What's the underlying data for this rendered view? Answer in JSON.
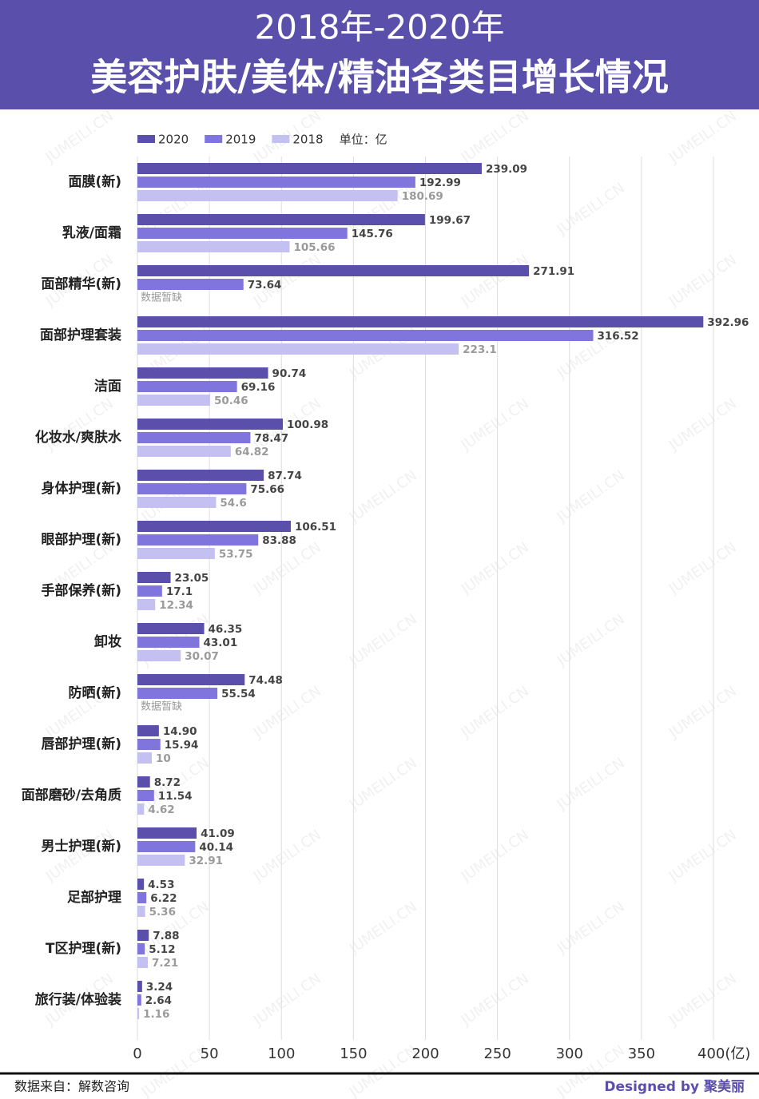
{
  "chart_data": {
    "type": "bar",
    "orientation": "horizontal",
    "title": "2018年-2020年",
    "subtitle": "美容护肤/美体/精油各类目增长情况",
    "unit_note": "单位：亿",
    "categories": [
      "面膜(新)",
      "乳液/面霜",
      "面部精华(新)",
      "面部护理套装",
      "洁面",
      "化妆水/爽肤水",
      "身体护理(新)",
      "眼部护理(新)",
      "手部保养(新)",
      "卸妆",
      "防晒(新)",
      "唇部护理(新)",
      "面部磨砂/去角质",
      "男士护理(新)",
      "足部护理",
      "T区护理(新)",
      "旅行装/体验装"
    ],
    "series": [
      {
        "name": "2020",
        "color": "#5a4fab",
        "values": [
          239.09,
          199.67,
          271.91,
          392.96,
          90.74,
          100.98,
          87.74,
          106.51,
          23.05,
          46.35,
          74.48,
          14.9,
          8.72,
          41.09,
          4.53,
          7.88,
          3.24
        ],
        "value_labels": [
          "239.09",
          "199.67",
          "271.91",
          "392.96",
          "90.74",
          "100.98",
          "87.74",
          "106.51",
          "23.05",
          "46.35",
          "74.48",
          "14.90",
          "8.72",
          "41.09",
          "4.53",
          "7.88",
          "3.24"
        ]
      },
      {
        "name": "2019",
        "color": "#8075dc",
        "values": [
          192.99,
          145.76,
          73.64,
          316.52,
          69.16,
          78.47,
          75.66,
          83.88,
          17.1,
          43.01,
          55.54,
          15.94,
          11.54,
          40.14,
          6.22,
          5.12,
          2.64
        ]
      },
      {
        "name": "2018",
        "color": "#c5c0f2",
        "values": [
          180.69,
          105.66,
          null,
          223.1,
          50.46,
          64.82,
          54.6,
          53.75,
          12.34,
          30.07,
          null,
          10,
          4.62,
          32.91,
          5.36,
          7.21,
          1.16
        ],
        "value_labels": [
          "180.69",
          "105.66",
          "数据暂缺",
          "223.1",
          "50.46",
          "64.82",
          "54.6",
          "53.75",
          "12.34",
          "30.07",
          "数据暂缺",
          "10",
          "4.62",
          "32.91",
          "5.36",
          "7.21",
          "1.16"
        ]
      }
    ],
    "xlim": [
      0,
      400
    ],
    "xticks": [
      0,
      50,
      100,
      150,
      200,
      250,
      300,
      350,
      {
        "value": 400,
        "label": "400(亿)"
      }
    ],
    "grid": true,
    "source": "数据来自：解数咨询",
    "credit": "Designed by 聚美丽",
    "watermark": "JUMEILI.CN"
  }
}
